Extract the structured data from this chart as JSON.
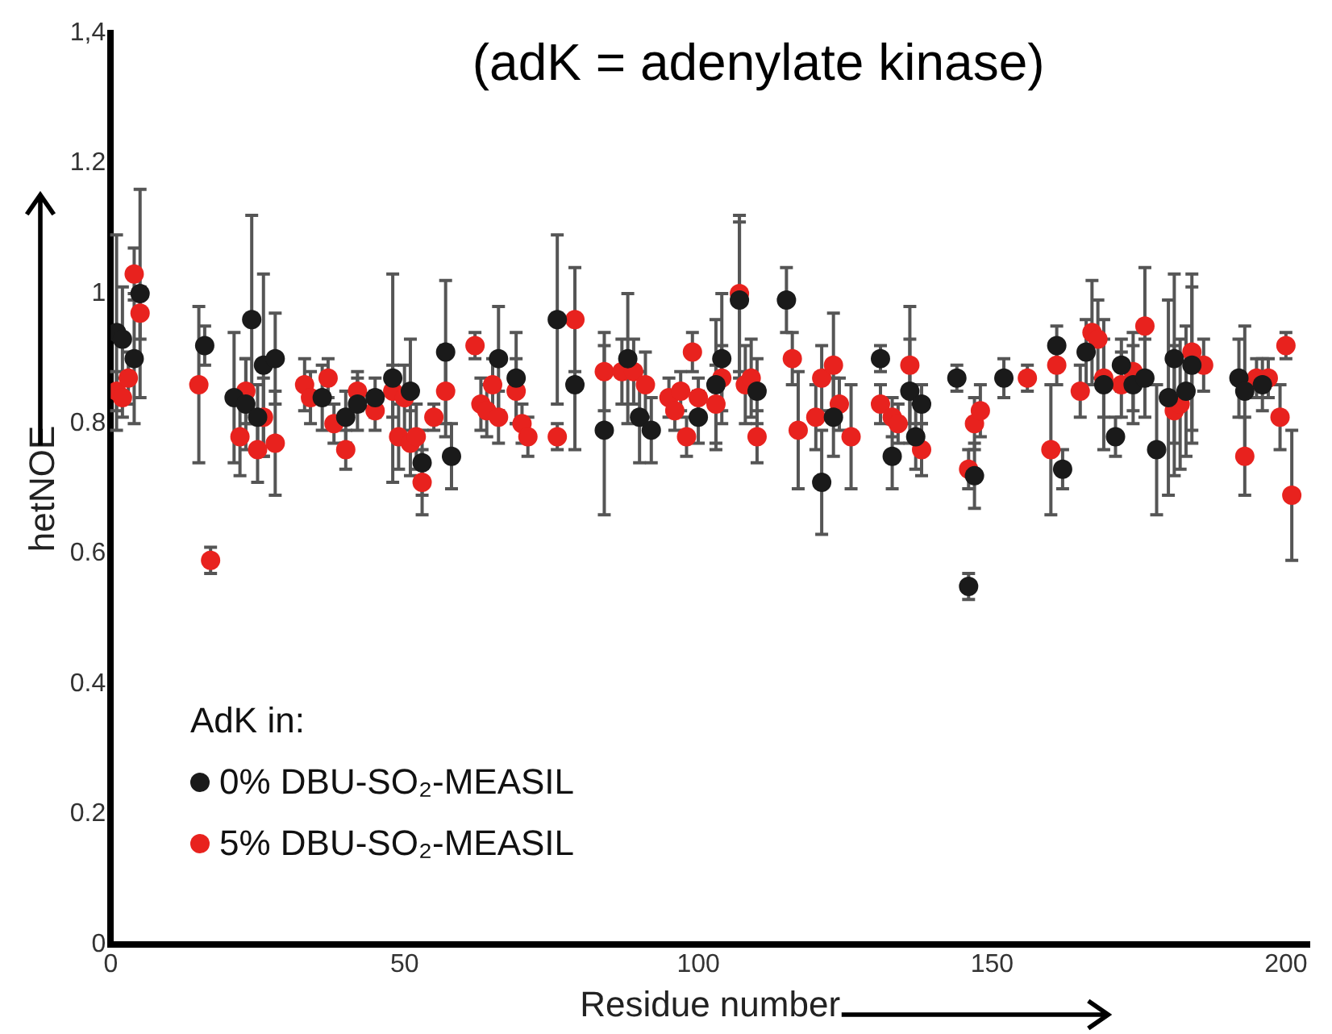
{
  "chart_data": {
    "type": "scatter",
    "title": "(adK = adenylate kinase)",
    "xlabel": "Residue number",
    "ylabel": "hetNOE",
    "legend_title": "AdK in:",
    "legend": "bottom left",
    "grid": false,
    "marker": "circle",
    "xlim": [
      0,
      204
    ],
    "xticks": [
      0,
      50,
      100,
      150,
      200
    ],
    "ylim": [
      0,
      1.4
    ],
    "yticks": [
      0,
      0.2,
      0.4,
      0.6,
      0.8,
      1,
      1.2,
      {
        "value": 1.4,
        "label": "1,4"
      }
    ],
    "series": [
      {
        "name": "0% DBU-SO₂-MEASIL",
        "color": "#1a1a1a",
        "x": [
          1,
          2,
          4,
          5,
          16,
          21,
          23,
          24,
          25,
          26,
          28,
          36,
          40,
          42,
          45,
          48,
          51,
          53,
          57,
          58,
          66,
          69,
          76,
          79,
          84,
          88,
          90,
          92,
          100,
          103,
          104,
          107,
          110,
          115,
          121,
          123,
          131,
          133,
          136,
          137,
          138,
          144,
          146,
          147,
          152,
          161,
          162,
          166,
          169,
          171,
          172,
          174,
          176,
          178,
          180,
          181,
          183,
          184,
          192,
          193,
          196
        ],
        "values": [
          0.94,
          0.93,
          0.9,
          1.0,
          0.92,
          0.84,
          0.83,
          0.96,
          0.81,
          0.89,
          0.9,
          0.84,
          0.81,
          0.83,
          0.84,
          0.87,
          0.85,
          0.74,
          0.91,
          0.75,
          0.9,
          0.87,
          0.96,
          0.86,
          0.79,
          0.9,
          0.81,
          0.79,
          0.81,
          0.86,
          0.9,
          0.99,
          0.85,
          0.99,
          0.71,
          0.81,
          0.9,
          0.75,
          0.85,
          0.78,
          0.83,
          0.87,
          0.55,
          0.72,
          0.87,
          0.92,
          0.73,
          0.91,
          0.86,
          0.78,
          0.89,
          0.86,
          0.87,
          0.76,
          0.84,
          0.9,
          0.85,
          0.89,
          0.87,
          0.85,
          0.86
        ],
        "errors": [
          0.15,
          0.08,
          0.1,
          0.16,
          0.03,
          0.1,
          0.07,
          0.16,
          0.05,
          0.14,
          0.07,
          0.05,
          0.04,
          0.04,
          0.03,
          0.16,
          0.08,
          0.05,
          0.11,
          0.05,
          0.08,
          0.07,
          0.13,
          0.1,
          0.13,
          0.1,
          0.07,
          0.05,
          0.04,
          0.1,
          0.1,
          0.12,
          0.05,
          0.05,
          0.08,
          0.06,
          0.02,
          0.05,
          0.08,
          0.05,
          0.03,
          0.02,
          0.02,
          0.05,
          0.03,
          0.03,
          0.03,
          0.05,
          0.1,
          0.03,
          0.04,
          0.06,
          0.06,
          0.1,
          0.15,
          0.13,
          0.1,
          0.12,
          0.06,
          0.1,
          0.04
        ]
      },
      {
        "name": "5% DBU-SO₂-MEASIL",
        "color": "#e8221e",
        "x": [
          1,
          2,
          3,
          4,
          5,
          15,
          17,
          22,
          23,
          25,
          26,
          28,
          33,
          34,
          37,
          38,
          40,
          42,
          45,
          48,
          50,
          49,
          51,
          52,
          53,
          55,
          57,
          62,
          63,
          64,
          65,
          66,
          69,
          70,
          71,
          76,
          79,
          84,
          87,
          89,
          91,
          95,
          96,
          97,
          98,
          99,
          100,
          103,
          104,
          107,
          108,
          109,
          110,
          116,
          117,
          120,
          121,
          123,
          124,
          126,
          131,
          133,
          134,
          136,
          138,
          146,
          147,
          148,
          156,
          160,
          161,
          165,
          167,
          168,
          169,
          172,
          174,
          176,
          181,
          182,
          184,
          186,
          193,
          195,
          197,
          199,
          200,
          201
        ],
        "values": [
          0.85,
          0.84,
          0.87,
          1.03,
          0.97,
          0.86,
          0.59,
          0.78,
          0.85,
          0.76,
          0.81,
          0.77,
          0.86,
          0.84,
          0.87,
          0.8,
          0.76,
          0.85,
          0.82,
          0.85,
          0.84,
          0.78,
          0.77,
          0.78,
          0.71,
          0.81,
          0.85,
          0.92,
          0.83,
          0.82,
          0.86,
          0.81,
          0.85,
          0.8,
          0.78,
          0.78,
          0.96,
          0.88,
          0.88,
          0.88,
          0.86,
          0.84,
          0.82,
          0.85,
          0.78,
          0.91,
          0.84,
          0.83,
          0.87,
          1.0,
          0.86,
          0.87,
          0.78,
          0.9,
          0.79,
          0.81,
          0.87,
          0.89,
          0.83,
          0.78,
          0.83,
          0.81,
          0.8,
          0.89,
          0.76,
          0.73,
          0.8,
          0.82,
          0.87,
          0.76,
          0.89,
          0.85,
          0.94,
          0.93,
          0.87,
          0.86,
          0.88,
          0.95,
          0.82,
          0.83,
          0.91,
          0.89,
          0.75,
          0.87,
          0.87,
          0.81,
          0.92,
          0.69
        ],
        "errors": [
          0.03,
          0.03,
          0.04,
          0.04,
          0.04,
          0.12,
          0.02,
          0.06,
          0.05,
          0.05,
          0.06,
          0.08,
          0.04,
          0.04,
          0.03,
          0.03,
          0.03,
          0.03,
          0.03,
          0.04,
          0.05,
          0.05,
          0.05,
          0.05,
          0.05,
          0.02,
          0.07,
          0.02,
          0.04,
          0.04,
          0.04,
          0.04,
          0.05,
          0.03,
          0.03,
          0.02,
          0.08,
          0.06,
          0.05,
          0.05,
          0.05,
          0.03,
          0.03,
          0.03,
          0.03,
          0.03,
          0.03,
          0.06,
          0.05,
          0.12,
          0.06,
          0.06,
          0.04,
          0.04,
          0.09,
          0.05,
          0.05,
          0.08,
          0.04,
          0.08,
          0.03,
          0.03,
          0.03,
          0.09,
          0.04,
          0.03,
          0.04,
          0.04,
          0.02,
          0.1,
          0.03,
          0.04,
          0.08,
          0.06,
          0.06,
          0.05,
          0.06,
          0.09,
          0.1,
          0.1,
          0.12,
          0.04,
          0.06,
          0.03,
          0.03,
          0.05,
          0.02,
          0.1
        ]
      }
    ]
  }
}
